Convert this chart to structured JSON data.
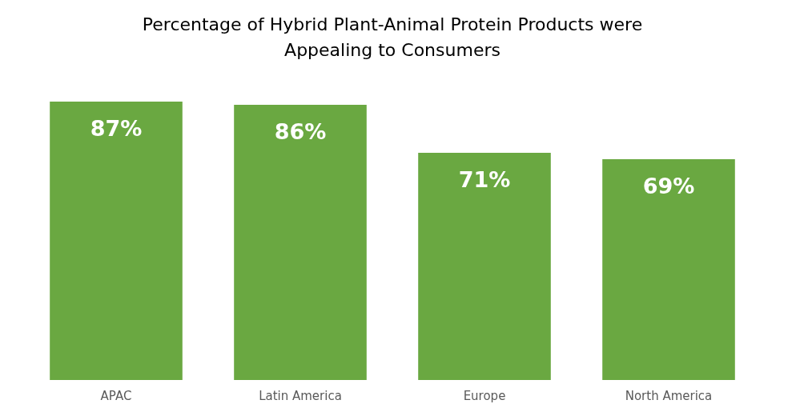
{
  "chart_data": {
    "type": "bar",
    "title": "Percentage of Hybrid Plant-Animal Protein Products were Appealing to Consumers",
    "categories": [
      "APAC",
      "Latin America",
      "Europe",
      "North America"
    ],
    "values": [
      87,
      86,
      71,
      69
    ],
    "color": "#6aa841",
    "value_labels": [
      "87%",
      "86%",
      "71%",
      "69%"
    ]
  }
}
